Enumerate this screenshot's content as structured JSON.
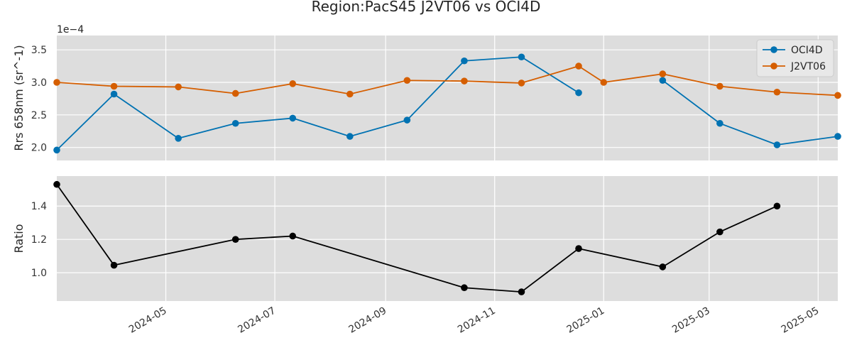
{
  "chart_data": [
    {
      "type": "line",
      "title": "Region:PacS45 J2VT06 vs OCI4D",
      "ylabel": "Rrs 658nm (sr^-1)",
      "y_offset_label": "1e−4",
      "y_scale": 0.0001,
      "ylim": [
        1.8,
        3.72
      ],
      "yticks": [
        2.0,
        2.5,
        3.0,
        3.5
      ],
      "ytick_labels": [
        "2.0",
        "2.5",
        "3.0",
        "3.5"
      ],
      "xlim": [
        "2024-03-01",
        "2025-05-12"
      ],
      "grid": true,
      "legend_position": "top-right",
      "series": [
        {
          "name": "OCI4D",
          "color": "#0072B2",
          "segments": [
            [
              {
                "x": "2024-03-01",
                "y": 1.96
              },
              {
                "x": "2024-04-02",
                "y": 2.82
              },
              {
                "x": "2024-05-08",
                "y": 2.14
              },
              {
                "x": "2024-06-09",
                "y": 2.37
              },
              {
                "x": "2024-07-11",
                "y": 2.45
              },
              {
                "x": "2024-08-12",
                "y": 2.17
              },
              {
                "x": "2024-09-13",
                "y": 2.42
              },
              {
                "x": "2024-10-15",
                "y": 3.33
              },
              {
                "x": "2024-11-16",
                "y": 3.39
              },
              {
                "x": "2024-12-18",
                "y": 2.84
              }
            ],
            [
              {
                "x": "2025-02-03",
                "y": 3.03
              },
              {
                "x": "2025-03-07",
                "y": 2.37
              },
              {
                "x": "2025-04-08",
                "y": 2.04
              },
              {
                "x": "2025-05-12",
                "y": 2.17
              }
            ]
          ]
        },
        {
          "name": "J2VT06",
          "color": "#D55E00",
          "segments": [
            [
              {
                "x": "2024-03-01",
                "y": 3.0
              },
              {
                "x": "2024-04-02",
                "y": 2.94
              },
              {
                "x": "2024-05-08",
                "y": 2.93
              },
              {
                "x": "2024-06-09",
                "y": 2.83
              },
              {
                "x": "2024-07-11",
                "y": 2.98
              },
              {
                "x": "2024-08-12",
                "y": 2.82
              },
              {
                "x": "2024-09-13",
                "y": 3.03
              },
              {
                "x": "2024-10-15",
                "y": 3.02
              },
              {
                "x": "2024-11-16",
                "y": 2.99
              },
              {
                "x": "2024-12-18",
                "y": 3.25
              },
              {
                "x": "2025-01-01",
                "y": 3.0
              },
              {
                "x": "2025-02-03",
                "y": 3.13
              },
              {
                "x": "2025-03-07",
                "y": 2.94
              },
              {
                "x": "2025-04-08",
                "y": 2.85
              },
              {
                "x": "2025-05-12",
                "y": 2.8
              }
            ]
          ]
        }
      ]
    },
    {
      "type": "line",
      "ylabel": "Ratio",
      "ylim": [
        0.83,
        1.58
      ],
      "yticks": [
        1.0,
        1.2,
        1.4
      ],
      "ytick_labels": [
        "1.0",
        "1.2",
        "1.4"
      ],
      "xlim": [
        "2024-03-01",
        "2025-05-12"
      ],
      "xticks": [
        "2024-05-01",
        "2024-07-01",
        "2024-09-01",
        "2024-11-01",
        "2025-01-01",
        "2025-03-01",
        "2025-05-01"
      ],
      "xtick_labels": [
        "2024-05",
        "2024-07",
        "2024-09",
        "2024-11",
        "2025-01",
        "2025-03",
        "2025-05"
      ],
      "grid": true,
      "series": [
        {
          "color": "#000000",
          "segments": [
            [
              {
                "x": "2024-03-01",
                "y": 1.53
              },
              {
                "x": "2024-04-02",
                "y": 1.045
              },
              {
                "x": "2024-06-09",
                "y": 1.2
              },
              {
                "x": "2024-07-11",
                "y": 1.22
              },
              {
                "x": "2024-10-15",
                "y": 0.91
              },
              {
                "x": "2024-11-16",
                "y": 0.885
              },
              {
                "x": "2024-12-18",
                "y": 1.145
              },
              {
                "x": "2025-02-03",
                "y": 1.035
              },
              {
                "x": "2025-03-07",
                "y": 1.245
              },
              {
                "x": "2025-04-08",
                "y": 1.4
              }
            ]
          ]
        }
      ]
    }
  ]
}
